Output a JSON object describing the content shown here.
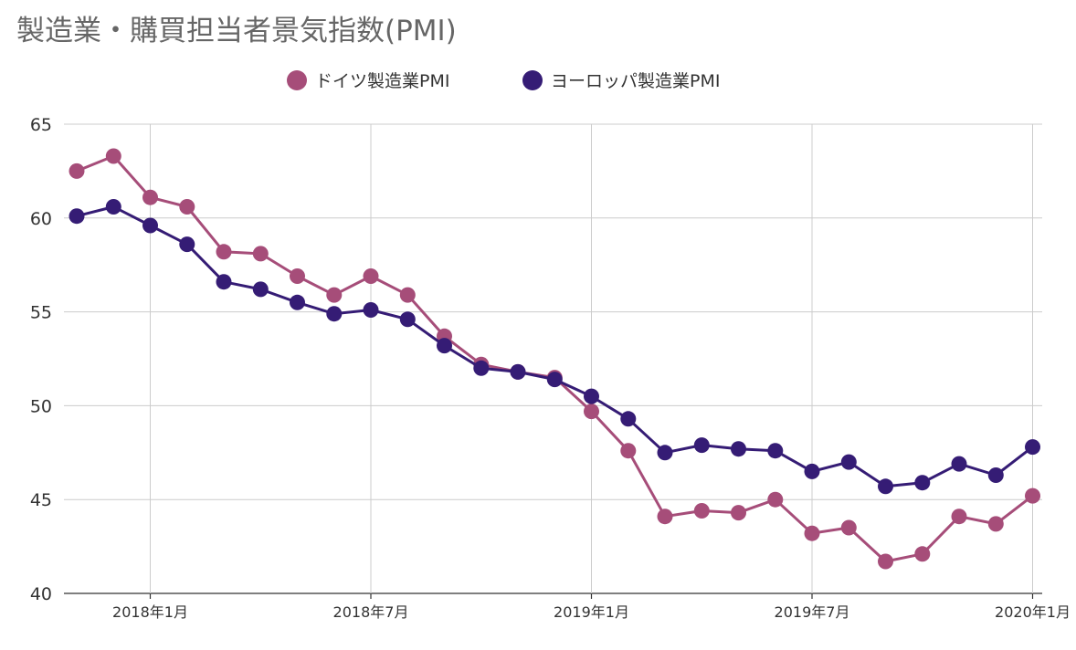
{
  "chart_data": {
    "type": "line",
    "title": "製造業・購買担当者景気指数(PMI)",
    "xlabel": "",
    "ylabel": "",
    "ylim": [
      40,
      65
    ],
    "yticks": [
      40,
      45,
      50,
      55,
      60,
      65
    ],
    "grid": true,
    "legend_position": "top",
    "x": [
      "2017-12",
      "2018-01",
      "2018-02",
      "2018-03",
      "2018-04",
      "2018-05",
      "2018-06",
      "2018-07",
      "2018-08",
      "2018-09",
      "2018-10",
      "2018-11",
      "2018-12",
      "2019-01",
      "2019-02",
      "2019-03",
      "2019-04",
      "2019-05",
      "2019-06",
      "2019-07",
      "2019-08",
      "2019-09",
      "2019-10",
      "2019-11",
      "2019-12",
      "2020-01"
    ],
    "xticks": [
      {
        "x": "2018-01",
        "label": "2018年1月"
      },
      {
        "x": "2018-07",
        "label": "2018年7月"
      },
      {
        "x": "2019-01",
        "label": "2019年1月"
      },
      {
        "x": "2019-07",
        "label": "2019年7月"
      },
      {
        "x": "2020-01",
        "label": "2020年1月"
      }
    ],
    "series": [
      {
        "name": "ドイツ製造業PMI",
        "color": "#a64d79",
        "values": [
          63.3,
          61.1,
          60.6,
          58.2,
          58.1,
          56.9,
          55.9,
          56.9,
          55.9,
          53.7,
          52.2,
          51.8,
          51.5,
          49.7,
          47.6,
          44.1,
          44.4,
          44.3,
          45.0,
          43.2,
          43.5,
          41.7,
          42.1,
          44.1,
          43.7,
          45.2
        ]
      },
      {
        "name": "ヨーロッパ製造業PMI",
        "color": "#351c75",
        "values": [
          60.6,
          59.6,
          58.6,
          56.6,
          56.2,
          55.5,
          54.9,
          55.1,
          54.6,
          53.2,
          52.0,
          51.8,
          51.4,
          50.5,
          49.3,
          47.5,
          47.9,
          47.7,
          47.6,
          46.5,
          47.0,
          45.7,
          45.9,
          46.9,
          46.3,
          47.8
        ]
      }
    ],
    "leading_point": {
      "x": "2017-11",
      "values": [
        62.5,
        60.1
      ]
    }
  }
}
